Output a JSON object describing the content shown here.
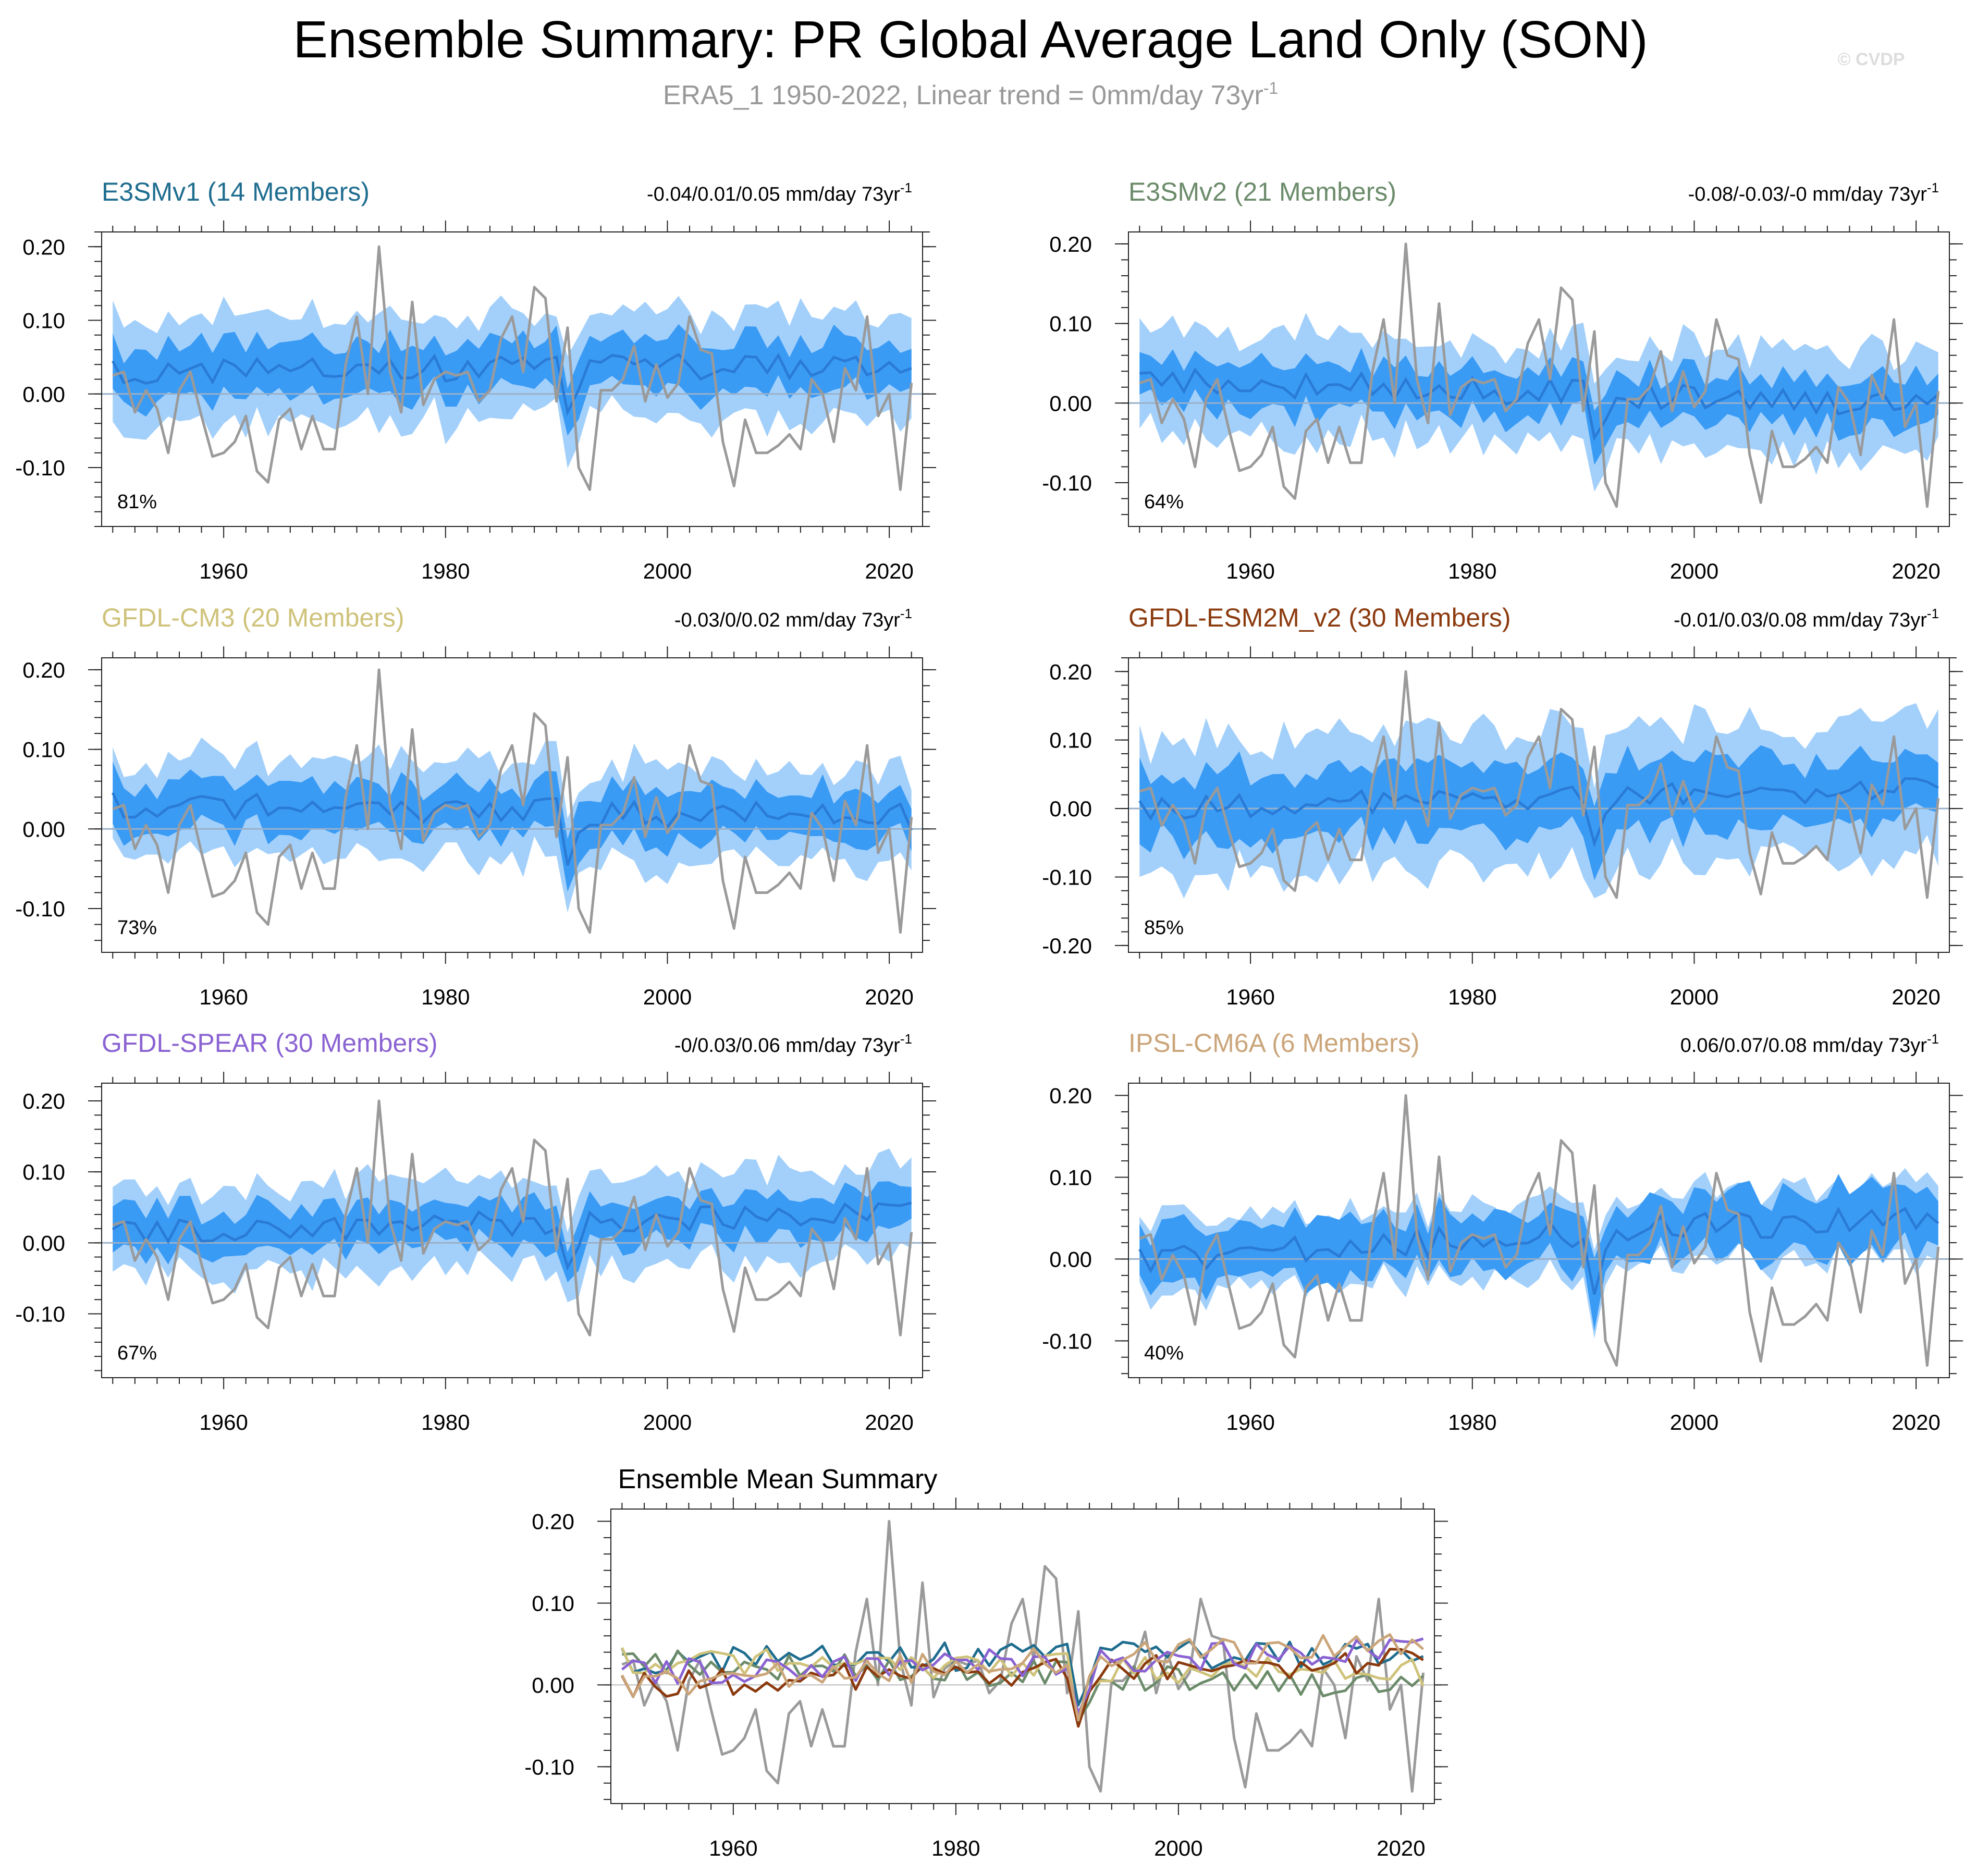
{
  "title": "Ensemble Summary: PR Global Average Land Only (SON)",
  "subtitle": "ERA5_1 1950-2022, Linear trend = 0mm/day 73yr",
  "subtitle_sup": "-1",
  "watermark": "© CVDP",
  "colors": {
    "outer_band": "#a3d0fb",
    "inner_band": "#3a9bf5",
    "ensemble_mean": "#2a7bd6",
    "observed": "#9a9a9a",
    "zero_line": "#9ab0c8"
  },
  "chart_data": [
    {
      "type": "line",
      "panel": "E3SMv1",
      "title": "E3SMv1 (14 Members)",
      "title_color": "#1f6d8f",
      "trend_text": "-0.04/0.01/0.05 mm/day 73yr",
      "trend_sup": "-1",
      "percent_label": "81%",
      "xlim": [
        1949,
        2023
      ],
      "ylim": [
        -0.18,
        0.22
      ],
      "xticks": [
        "1960",
        "1980",
        "2000",
        "2020"
      ],
      "yticks": [
        "0.20",
        "0.10",
        "0.00",
        "-0.10"
      ],
      "seed": 11,
      "mean_start": 0.03,
      "mean_end": 0.04,
      "spread": 0.035,
      "outer_spread": 0.07
    },
    {
      "type": "line",
      "panel": "E3SMv2",
      "title": "E3SMv2 (21 Members)",
      "title_color": "#6b8b6a",
      "trend_text": "-0.08/-0.03/-0 mm/day 73yr",
      "trend_sup": "-1",
      "percent_label": "64%",
      "xlim": [
        1949,
        2023
      ],
      "ylim": [
        -0.155,
        0.215
      ],
      "xticks": [
        "1960",
        "1980",
        "2000",
        "2020"
      ],
      "yticks": [
        "0.20",
        "0.10",
        "0.00",
        "-0.10"
      ],
      "seed": 23,
      "mean_start": 0.03,
      "mean_end": 0.0,
      "spread": 0.03,
      "outer_spread": 0.065
    },
    {
      "type": "line",
      "panel": "GFDL-CM3",
      "title": "GFDL-CM3 (20 Members)",
      "title_color": "#cfc27a",
      "trend_text": "-0.03/0/0.02 mm/day 73yr",
      "trend_sup": "-1",
      "percent_label": "73%",
      "xlim": [
        1949,
        2023
      ],
      "ylim": [
        -0.155,
        0.215
      ],
      "xticks": [
        "1960",
        "1980",
        "2000",
        "2020"
      ],
      "yticks": [
        "0.20",
        "0.10",
        "0.00",
        "-0.10"
      ],
      "seed": 37,
      "mean_start": 0.03,
      "mean_end": 0.015,
      "spread": 0.03,
      "outer_spread": 0.06
    },
    {
      "type": "line",
      "panel": "GFDL-ESM2M_v2",
      "title": "GFDL-ESM2M_v2 (30 Members)",
      "title_color": "#8b3a0e",
      "trend_text": "-0.01/0.03/0.08 mm/day 73yr",
      "trend_sup": "-1",
      "percent_label": "85%",
      "xlim": [
        1949,
        2023
      ],
      "ylim": [
        -0.21,
        0.22
      ],
      "xticks": [
        "1960",
        "1980",
        "2000",
        "2020"
      ],
      "yticks": [
        "0.20",
        "0.10",
        "0.00",
        "-0.10",
        "-0.20"
      ],
      "seed": 41,
      "mean_start": 0.0,
      "mean_end": 0.03,
      "spread": 0.05,
      "outer_spread": 0.1
    },
    {
      "type": "line",
      "panel": "GFDL-SPEAR",
      "title": "GFDL-SPEAR (30 Members)",
      "title_color": "#8a62d2",
      "trend_text": "-0/0.03/0.06 mm/day 73yr",
      "trend_sup": "-1",
      "percent_label": "67%",
      "xlim": [
        1949,
        2023
      ],
      "ylim": [
        -0.19,
        0.225
      ],
      "xticks": [
        "1960",
        "1980",
        "2000",
        "2020"
      ],
      "yticks": [
        "0.20",
        "0.10",
        "0.00",
        "-0.10"
      ],
      "seed": 53,
      "mean_start": 0.015,
      "mean_end": 0.04,
      "spread": 0.03,
      "outer_spread": 0.065
    },
    {
      "type": "line",
      "panel": "IPSL-CM6A",
      "title": "IPSL-CM6A (6 Members)",
      "title_color": "#cba57a",
      "trend_text": "0.06/0.07/0.08 mm/day 73yr",
      "trend_sup": "-1",
      "percent_label": "40%",
      "xlim": [
        1949,
        2023
      ],
      "ylim": [
        -0.145,
        0.215
      ],
      "xticks": [
        "1960",
        "1980",
        "2000",
        "2020"
      ],
      "yticks": [
        "0.20",
        "0.10",
        "0.00",
        "-0.10"
      ],
      "seed": 67,
      "mean_start": 0.0,
      "mean_end": 0.055,
      "spread": 0.035,
      "outer_spread": 0.045
    },
    {
      "type": "line",
      "panel": "Ensemble Mean Summary",
      "title": "Ensemble Mean Summary",
      "xlim": [
        1949,
        2023
      ],
      "ylim": [
        -0.145,
        0.215
      ],
      "xticks": [
        "1960",
        "1980",
        "2000",
        "2020"
      ],
      "yticks": [
        "0.20",
        "0.10",
        "0.00",
        "-0.10"
      ],
      "series_colors": [
        "#1f6d8f",
        "#6b8b6a",
        "#cfc27a",
        "#8b3a0e",
        "#8a62d2",
        "#cba57a"
      ]
    }
  ],
  "observed_series": {
    "name": "ERA5_1",
    "x": [
      1950,
      1951,
      1952,
      1953,
      1954,
      1955,
      1956,
      1957,
      1958,
      1959,
      1960,
      1961,
      1962,
      1963,
      1964,
      1965,
      1966,
      1967,
      1968,
      1969,
      1970,
      1971,
      1972,
      1973,
      1974,
      1975,
      1976,
      1977,
      1978,
      1979,
      1980,
      1981,
      1982,
      1983,
      1984,
      1985,
      1986,
      1987,
      1988,
      1989,
      1990,
      1991,
      1992,
      1993,
      1994,
      1995,
      1996,
      1997,
      1998,
      1999,
      2000,
      2001,
      2002,
      2003,
      2004,
      2005,
      2006,
      2007,
      2008,
      2009,
      2010,
      2011,
      2012,
      2013,
      2014,
      2015,
      2016,
      2017,
      2018,
      2019,
      2020,
      2021,
      2022
    ],
    "y": [
      0.025,
      0.03,
      -0.025,
      0.005,
      -0.02,
      -0.08,
      0.005,
      0.03,
      -0.03,
      -0.085,
      -0.08,
      -0.065,
      -0.03,
      -0.105,
      -0.12,
      -0.035,
      -0.02,
      -0.075,
      -0.03,
      -0.075,
      -0.075,
      0.04,
      0.105,
      0.0,
      0.2,
      0.03,
      -0.025,
      0.125,
      -0.015,
      0.02,
      0.03,
      0.025,
      0.03,
      -0.01,
      0.005,
      0.075,
      0.105,
      0.03,
      0.145,
      0.13,
      -0.01,
      0.09,
      -0.1,
      -0.13,
      0.005,
      0.005,
      0.02,
      0.065,
      -0.01,
      0.04,
      -0.005,
      0.015,
      0.105,
      0.06,
      0.055,
      -0.065,
      -0.125,
      -0.035,
      -0.08,
      -0.08,
      -0.07,
      -0.055,
      -0.075,
      0.02,
      0.0,
      -0.065,
      0.035,
      0.005,
      0.105,
      -0.03,
      0.0,
      -0.13,
      0.015
    ]
  }
}
